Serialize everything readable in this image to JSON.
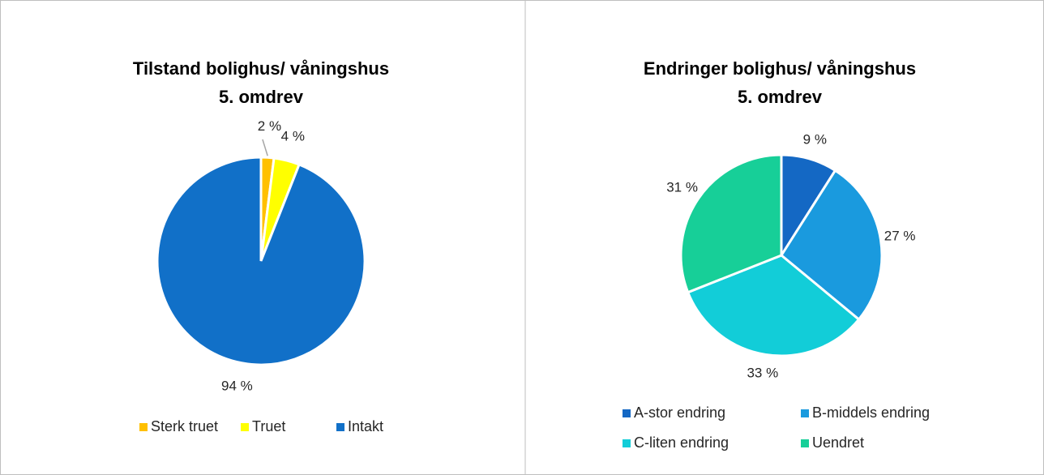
{
  "chart_data": [
    {
      "type": "pie",
      "title": "Tilstand bolighus/ våningshus",
      "subtitle": "5. omdrev",
      "categories": [
        "Sterk truet",
        "Truet",
        "Intakt"
      ],
      "values": [
        2,
        4,
        94
      ],
      "value_labels": [
        "2 %",
        "4 %",
        "94 %"
      ],
      "colors": [
        "#ffc000",
        "#ffff00",
        "#1170c8"
      ],
      "legend": "bottom"
    },
    {
      "type": "pie",
      "title": "Endringer bolighus/ våningshus",
      "subtitle": "5. omdrev",
      "categories": [
        "A-stor endring",
        "B-middels endring",
        "C-liten endring",
        "Uendret"
      ],
      "values": [
        9,
        27,
        33,
        31
      ],
      "value_labels": [
        "9 %",
        "27 %",
        "33 %",
        "31 %"
      ],
      "colors": [
        "#1468c4",
        "#1a9ade",
        "#12cdd8",
        "#17cf98"
      ],
      "legend": "bottom"
    }
  ]
}
